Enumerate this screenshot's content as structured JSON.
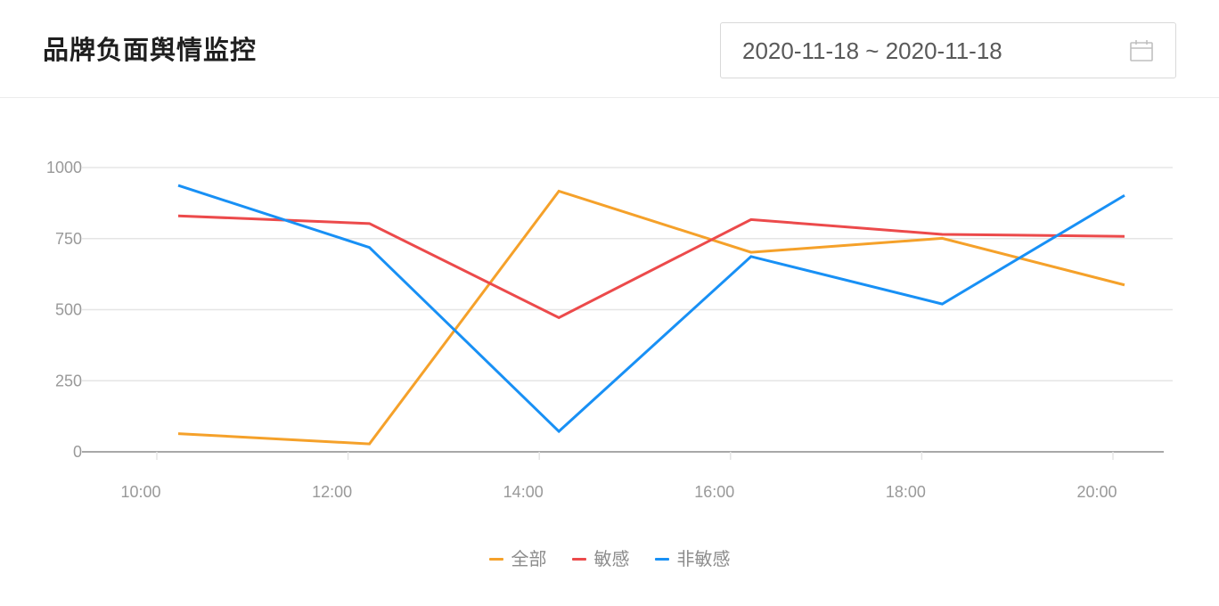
{
  "header": {
    "title": "品牌负面舆情监控",
    "date_range": "2020-11-18 ~ 2020-11-18",
    "calendar_icon": "calendar-icon"
  },
  "colors": {
    "全部": "#f5a12a",
    "敏感": "#ec4a4b",
    "非敏感": "#1890f5",
    "grid": "#e5e5e5",
    "axis": "#8c8c8c",
    "tick_text": "#999999"
  },
  "chart_data": {
    "type": "line",
    "title": "",
    "xlabel": "",
    "ylabel": "",
    "x_ticks": [
      "10:00",
      "12:00",
      "14:00",
      "16:00",
      "18:00",
      "20:00"
    ],
    "y_ticks": [
      0,
      250,
      500,
      750,
      1000
    ],
    "ylim": [
      0,
      1000
    ],
    "grid": true,
    "legend": "bottom-center",
    "series": [
      {
        "name": "全部",
        "color": "#f5a12a",
        "values": [
          64,
          28,
          917,
          702,
          751,
          587
        ]
      },
      {
        "name": "敏感",
        "color": "#ec4a4b",
        "values": [
          830,
          803,
          472,
          817,
          765,
          758
        ]
      },
      {
        "name": "非敏感",
        "color": "#1890f5",
        "values": [
          937,
          719,
          72,
          687,
          520,
          902
        ]
      }
    ]
  }
}
